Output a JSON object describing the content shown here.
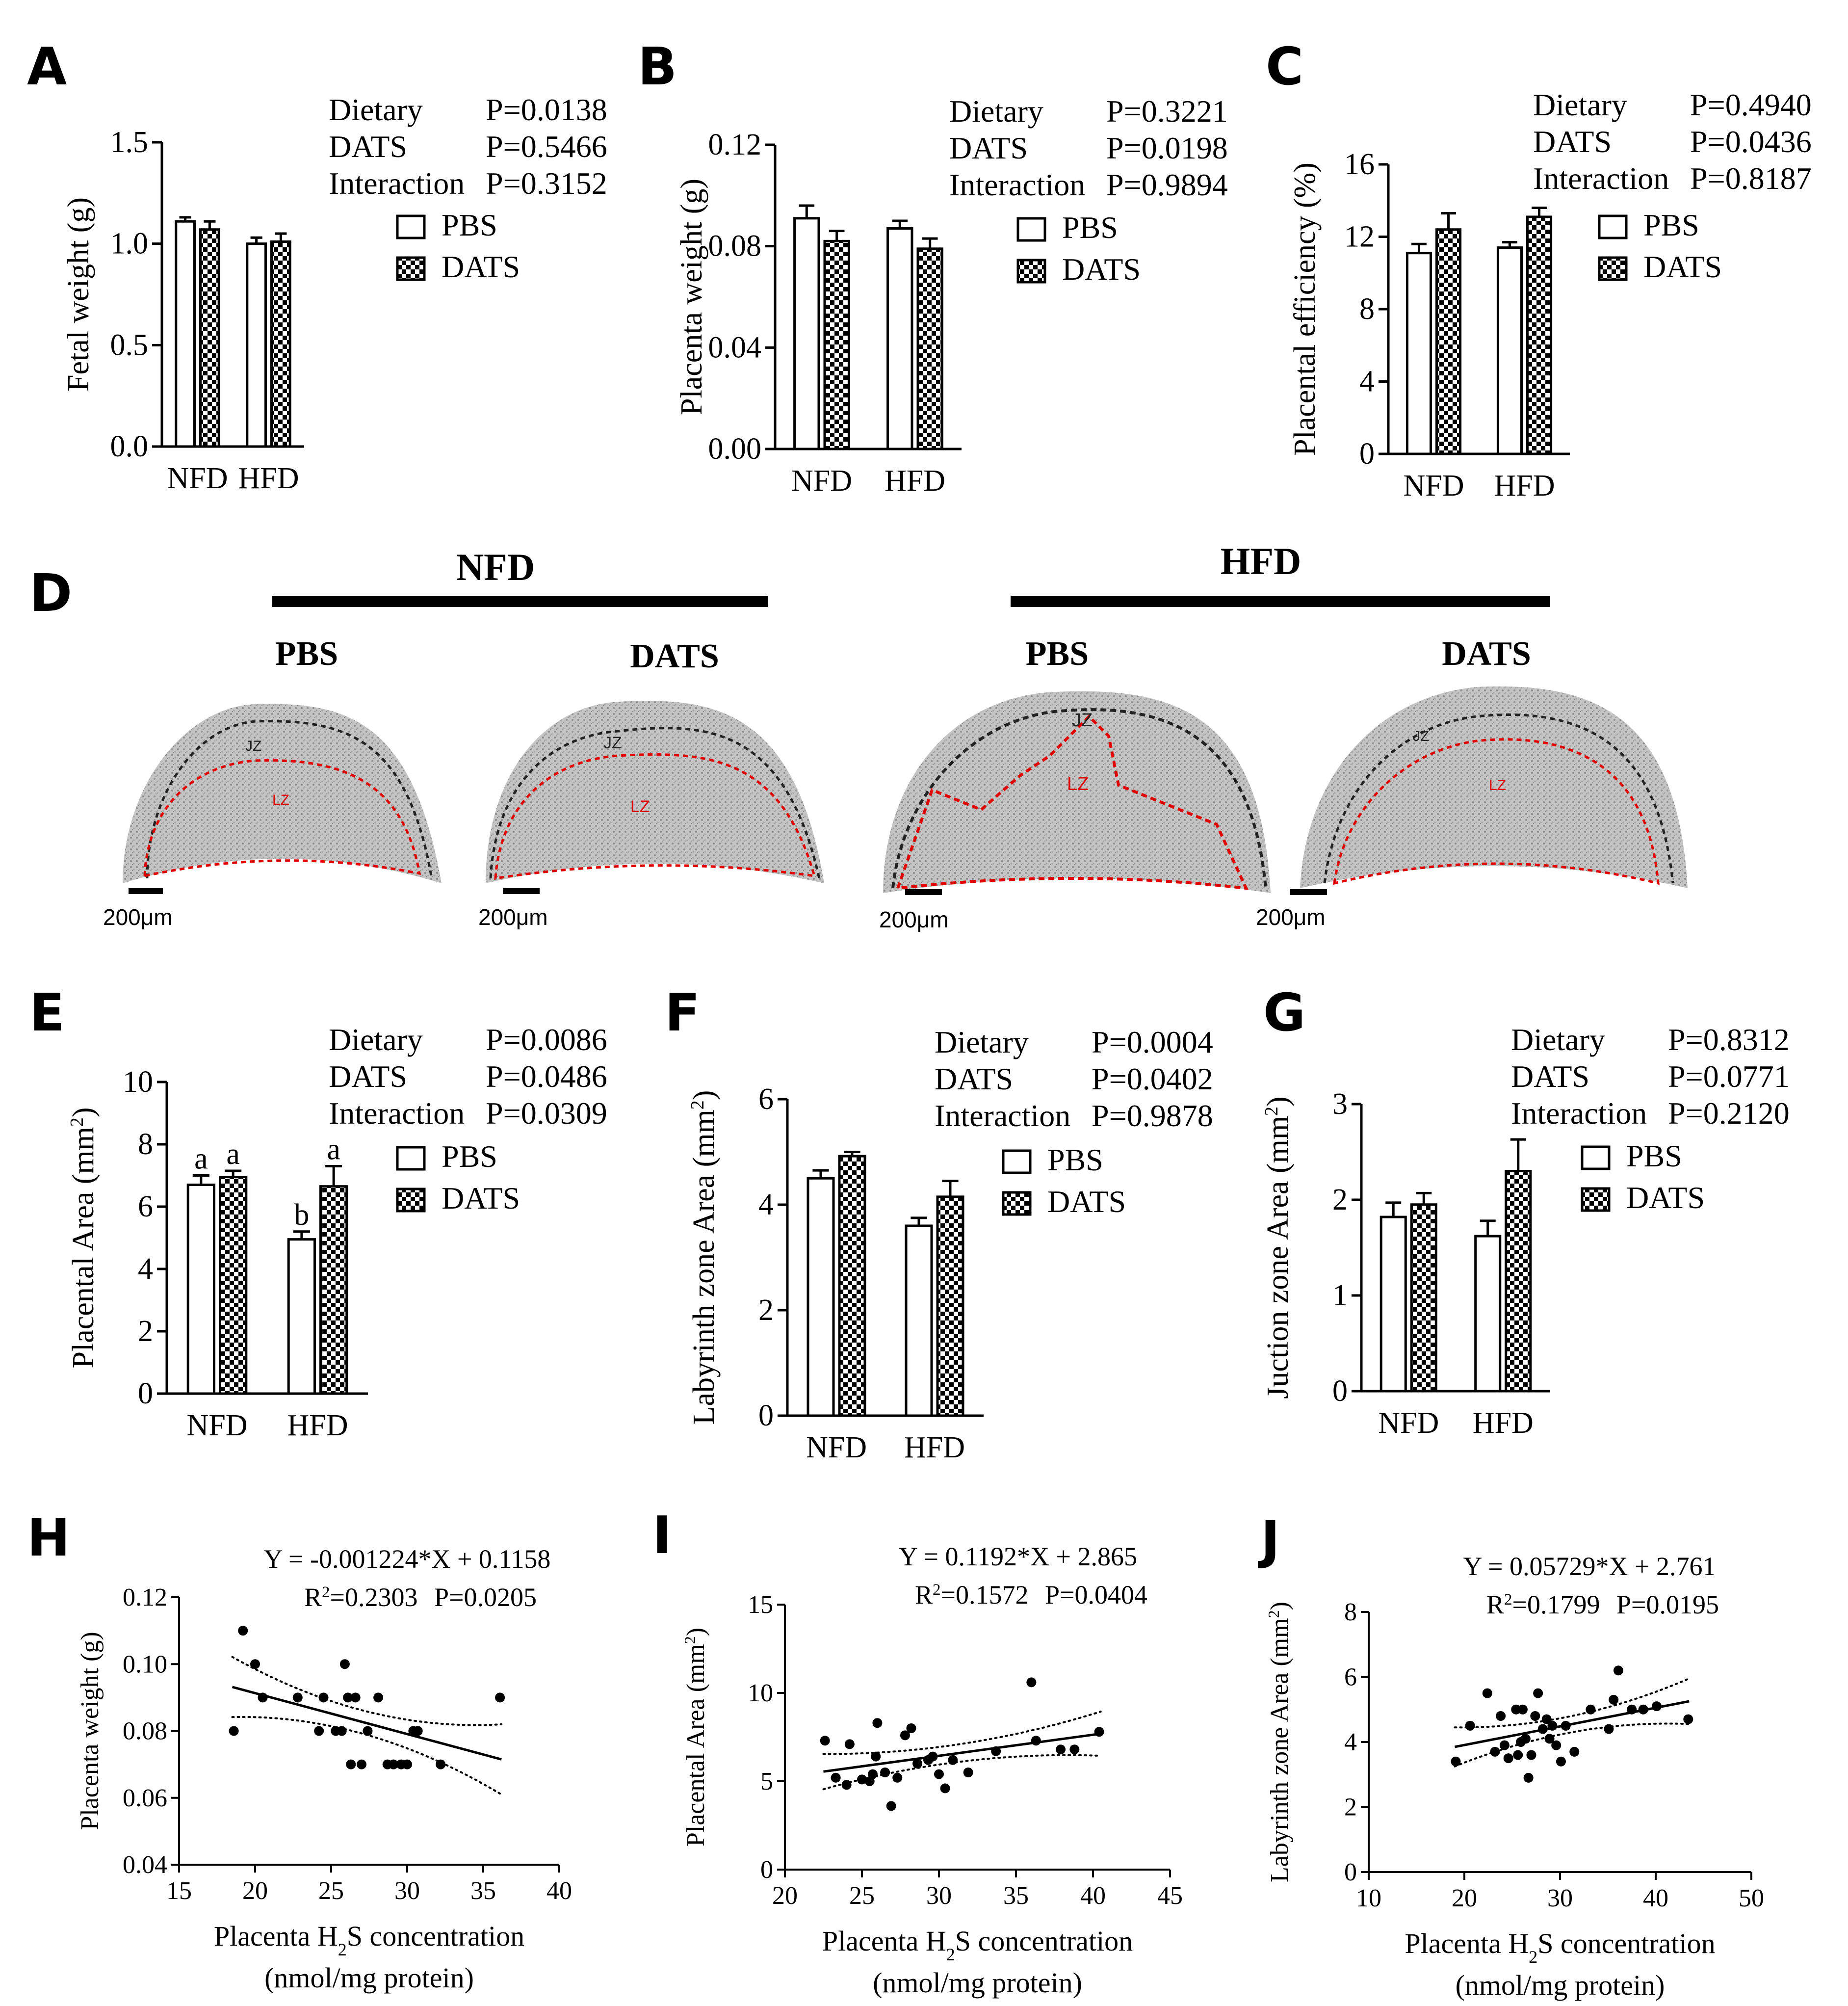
{
  "panel_letters": [
    "A",
    "B",
    "C",
    "D",
    "E",
    "F",
    "G",
    "H",
    "I",
    "J"
  ],
  "legend": {
    "pbs": "PBS",
    "dats": "DATS"
  },
  "colors": {
    "bar_edge": "#000000",
    "lz_line": "#e00000",
    "jz_line": "#222222",
    "tissue": "#b9b9b9"
  },
  "histology": {
    "groups": [
      "NFD",
      "HFD"
    ],
    "subgroups": [
      "PBS",
      "DATS",
      "PBS",
      "DATS"
    ],
    "zone_labels": {
      "jz": "JZ",
      "lz": "LZ"
    },
    "scale_label": "200μm"
  },
  "chart_data": [
    {
      "panel": "A",
      "type": "bar",
      "categories": [
        "NFD",
        "HFD"
      ],
      "series": [
        {
          "name": "PBS",
          "values": [
            1.11,
            1.0
          ],
          "err": [
            0.02,
            0.03
          ]
        },
        {
          "name": "DATS",
          "values": [
            1.07,
            1.01
          ],
          "err": [
            0.04,
            0.04
          ]
        }
      ],
      "ylabel": "Fetal weight (g)",
      "ylim": [
        0,
        1.5
      ],
      "yticks": [
        0.0,
        0.5,
        1.0,
        1.5
      ],
      "ytick_labels": [
        "0.0",
        "0.5",
        "1.0",
        "1.5"
      ],
      "stats": [
        {
          "name": "Dietary",
          "p": "P=0.0138"
        },
        {
          "name": "DATS",
          "p": "P=0.5466"
        },
        {
          "name": "Interaction",
          "p": "P=0.3152"
        }
      ]
    },
    {
      "panel": "B",
      "type": "bar",
      "categories": [
        "NFD",
        "HFD"
      ],
      "series": [
        {
          "name": "PBS",
          "values": [
            0.091,
            0.087
          ],
          "err": [
            0.005,
            0.003
          ]
        },
        {
          "name": "DATS",
          "values": [
            0.082,
            0.079
          ],
          "err": [
            0.004,
            0.004
          ]
        }
      ],
      "ylabel": "Placenta weight (g)",
      "ylim": [
        0,
        0.12
      ],
      "yticks": [
        0,
        0.04,
        0.08,
        0.12
      ],
      "ytick_labels": [
        "0.00",
        "0.04",
        "0.08",
        "0.12"
      ],
      "stats": [
        {
          "name": "Dietary",
          "p": "P=0.3221"
        },
        {
          "name": "DATS",
          "p": "P=0.0198"
        },
        {
          "name": "Interaction",
          "p": "P=0.9894"
        }
      ]
    },
    {
      "panel": "C",
      "type": "bar",
      "categories": [
        "NFD",
        "HFD"
      ],
      "series": [
        {
          "name": "PBS",
          "values": [
            11.1,
            11.4
          ],
          "err": [
            0.5,
            0.3
          ]
        },
        {
          "name": "DATS",
          "values": [
            12.4,
            13.1
          ],
          "err": [
            0.9,
            0.5
          ]
        }
      ],
      "ylabel": "Placental efficiency (%)",
      "ylim": [
        0,
        16
      ],
      "yticks": [
        0,
        4,
        8,
        12,
        16
      ],
      "ytick_labels": [
        "0",
        "4",
        "8",
        "12",
        "16"
      ],
      "stats": [
        {
          "name": "Dietary",
          "p": "P=0.4940"
        },
        {
          "name": "DATS",
          "p": "P=0.0436"
        },
        {
          "name": "Interaction",
          "p": "P=0.8187"
        }
      ]
    },
    {
      "panel": "E",
      "type": "bar",
      "categories": [
        "NFD",
        "HFD"
      ],
      "series": [
        {
          "name": "PBS",
          "values": [
            6.7,
            4.95
          ],
          "err": [
            0.3,
            0.25
          ],
          "letters": [
            "a",
            "b"
          ]
        },
        {
          "name": "DATS",
          "values": [
            6.95,
            6.65
          ],
          "err": [
            0.2,
            0.65
          ],
          "letters": [
            "a",
            "a"
          ]
        }
      ],
      "ylabel": "Placental Area (mm²)",
      "ylim": [
        0,
        10
      ],
      "yticks": [
        0,
        2,
        4,
        6,
        8,
        10
      ],
      "ytick_labels": [
        "0",
        "2",
        "4",
        "6",
        "8",
        "10"
      ],
      "stats": [
        {
          "name": "Dietary",
          "p": "P=0.0086"
        },
        {
          "name": "DATS",
          "p": "P=0.0486"
        },
        {
          "name": "Interaction",
          "p": "P=0.0309"
        }
      ]
    },
    {
      "panel": "F",
      "type": "bar",
      "categories": [
        "NFD",
        "HFD"
      ],
      "series": [
        {
          "name": "PBS",
          "values": [
            4.5,
            3.6
          ],
          "err": [
            0.15,
            0.15
          ]
        },
        {
          "name": "DATS",
          "values": [
            4.92,
            4.15
          ],
          "err": [
            0.08,
            0.3
          ]
        }
      ],
      "ylabel": "Labyrinth zone Area (mm²)",
      "ylim": [
        0,
        6
      ],
      "yticks": [
        0,
        2,
        4,
        6
      ],
      "ytick_labels": [
        "0",
        "2",
        "4",
        "6"
      ],
      "stats": [
        {
          "name": "Dietary",
          "p": "P=0.0004"
        },
        {
          "name": "DATS",
          "p": "P=0.0402"
        },
        {
          "name": "Interaction",
          "p": "P=0.9878"
        }
      ]
    },
    {
      "panel": "G",
      "type": "bar",
      "categories": [
        "NFD",
        "HFD"
      ],
      "series": [
        {
          "name": "PBS",
          "values": [
            1.82,
            1.62
          ],
          "err": [
            0.15,
            0.16
          ]
        },
        {
          "name": "DATS",
          "values": [
            1.95,
            2.3
          ],
          "err": [
            0.12,
            0.33
          ]
        }
      ],
      "ylabel": "Juction zone Area (mm²)",
      "ylim": [
        0,
        3
      ],
      "yticks": [
        0,
        1,
        2,
        3
      ],
      "ytick_labels": [
        "0",
        "1",
        "2",
        "3"
      ],
      "stats": [
        {
          "name": "Dietary",
          "p": "P=0.8312"
        },
        {
          "name": "DATS",
          "p": "P=0.0771"
        },
        {
          "name": "Interaction",
          "p": "P=0.2120"
        }
      ]
    },
    {
      "panel": "H",
      "type": "scatter",
      "equation": "Y = -0.001224*X + 0.1158",
      "r2": "R²=0.2303",
      "p": "P=0.0205",
      "xlabel": "Placenta H₂S concentration",
      "xlabel2": "(nmol/mg protein)",
      "ylabel": "Placenta weight (g)",
      "xlim": [
        15,
        40
      ],
      "ylim": [
        0.04,
        0.12
      ],
      "xticks": [
        15,
        20,
        25,
        30,
        35,
        40
      ],
      "yticks": [
        0.04,
        0.06,
        0.08,
        0.1,
        0.12
      ],
      "xtick_labels": [
        "15",
        "20",
        "25",
        "30",
        "35",
        "40"
      ],
      "ytick_labels": [
        "0.04",
        "0.06",
        "0.08",
        "0.10",
        "0.12"
      ],
      "fit": {
        "slope": -0.001224,
        "intercept": 0.1158,
        "x": [
          18.5,
          36.2
        ],
        "ci_half": [
          0.009,
          0.0035,
          0.0105
        ]
      },
      "points": [
        [
          18.6,
          0.08
        ],
        [
          19.2,
          0.11
        ],
        [
          20.0,
          0.1
        ],
        [
          20.5,
          0.09
        ],
        [
          22.8,
          0.09
        ],
        [
          24.2,
          0.08
        ],
        [
          24.5,
          0.09
        ],
        [
          25.3,
          0.08
        ],
        [
          25.7,
          0.08
        ],
        [
          25.9,
          0.1
        ],
        [
          26.1,
          0.09
        ],
        [
          26.3,
          0.07
        ],
        [
          26.6,
          0.09
        ],
        [
          27.0,
          0.07
        ],
        [
          27.4,
          0.08
        ],
        [
          28.1,
          0.09
        ],
        [
          28.7,
          0.07
        ],
        [
          29.1,
          0.07
        ],
        [
          29.6,
          0.07
        ],
        [
          30.0,
          0.07
        ],
        [
          30.4,
          0.08
        ],
        [
          30.7,
          0.08
        ],
        [
          32.2,
          0.07
        ],
        [
          36.1,
          0.09
        ]
      ]
    },
    {
      "panel": "I",
      "type": "scatter",
      "equation": "Y = 0.1192*X + 2.865",
      "r2": "R²=0.1572",
      "p": "P=0.0404",
      "xlabel": "Placenta H₂S concentration",
      "xlabel2": "(nmol/mg protein)",
      "ylabel": "Placental Area (mm²)",
      "xlim": [
        20,
        45
      ],
      "ylim": [
        0,
        15
      ],
      "xticks": [
        20,
        25,
        30,
        35,
        40,
        45
      ],
      "yticks": [
        0,
        5,
        10,
        15
      ],
      "xtick_labels": [
        "20",
        "25",
        "30",
        "35",
        "40",
        "45"
      ],
      "ytick_labels": [
        "0",
        "5",
        "10",
        "15"
      ],
      "fit": {
        "slope": 0.1192,
        "intercept": 2.865,
        "x": [
          22.5,
          40.5
        ],
        "ci_half": [
          1.0,
          0.5,
          1.25
        ]
      },
      "points": [
        [
          22.6,
          7.3
        ],
        [
          23.3,
          5.2
        ],
        [
          24.0,
          4.8
        ],
        [
          24.2,
          7.1
        ],
        [
          25.0,
          5.1
        ],
        [
          25.5,
          5.0
        ],
        [
          25.7,
          5.4
        ],
        [
          25.9,
          6.4
        ],
        [
          26.0,
          8.3
        ],
        [
          26.5,
          5.5
        ],
        [
          26.9,
          3.6
        ],
        [
          27.3,
          5.2
        ],
        [
          27.8,
          7.6
        ],
        [
          28.2,
          8.0
        ],
        [
          28.6,
          6.0
        ],
        [
          29.3,
          6.2
        ],
        [
          29.6,
          6.4
        ],
        [
          30.0,
          5.4
        ],
        [
          30.4,
          4.6
        ],
        [
          30.9,
          6.2
        ],
        [
          31.9,
          5.5
        ],
        [
          33.7,
          6.7
        ],
        [
          36.0,
          10.6
        ],
        [
          36.3,
          7.3
        ],
        [
          37.9,
          6.8
        ],
        [
          38.8,
          6.8
        ],
        [
          40.4,
          7.8
        ]
      ]
    },
    {
      "panel": "J",
      "type": "scatter",
      "equation": "Y = 0.05729*X + 2.761",
      "r2": "R²=0.1799",
      "p": "P=0.0195",
      "xlabel": "Placenta H₂S concentration",
      "xlabel2": "(nmol/mg protein)",
      "ylabel": "Labyrinth zone Area (mm²)",
      "xlim": [
        10,
        50
      ],
      "ylim": [
        0,
        8
      ],
      "xticks": [
        10,
        20,
        30,
        40,
        50
      ],
      "yticks": [
        0,
        2,
        4,
        6,
        8
      ],
      "xtick_labels": [
        "10",
        "20",
        "30",
        "40",
        "50"
      ],
      "ytick_labels": [
        "0",
        "2",
        "4",
        "6",
        "8"
      ],
      "fit": {
        "slope": 0.05729,
        "intercept": 2.761,
        "x": [
          19,
          43.5
        ],
        "ci_half": [
          0.6,
          0.25,
          0.7
        ]
      },
      "points": [
        [
          19.1,
          3.4
        ],
        [
          20.6,
          4.5
        ],
        [
          22.4,
          5.5
        ],
        [
          23.2,
          3.7
        ],
        [
          23.8,
          4.8
        ],
        [
          24.2,
          3.9
        ],
        [
          24.6,
          3.5
        ],
        [
          25.4,
          5.0
        ],
        [
          25.6,
          3.6
        ],
        [
          25.9,
          4.0
        ],
        [
          26.1,
          5.0
        ],
        [
          26.4,
          4.1
        ],
        [
          26.7,
          2.9
        ],
        [
          27.0,
          3.6
        ],
        [
          27.4,
          4.8
        ],
        [
          27.7,
          5.5
        ],
        [
          28.2,
          4.4
        ],
        [
          28.6,
          4.7
        ],
        [
          28.9,
          4.1
        ],
        [
          29.2,
          4.5
        ],
        [
          29.6,
          3.9
        ],
        [
          30.1,
          3.4
        ],
        [
          30.6,
          4.5
        ],
        [
          31.5,
          3.7
        ],
        [
          33.2,
          5.0
        ],
        [
          35.1,
          4.4
        ],
        [
          35.6,
          5.3
        ],
        [
          36.1,
          6.2
        ],
        [
          37.5,
          5.0
        ],
        [
          38.7,
          5.0
        ],
        [
          40.1,
          5.1
        ],
        [
          43.4,
          4.7
        ]
      ]
    }
  ]
}
